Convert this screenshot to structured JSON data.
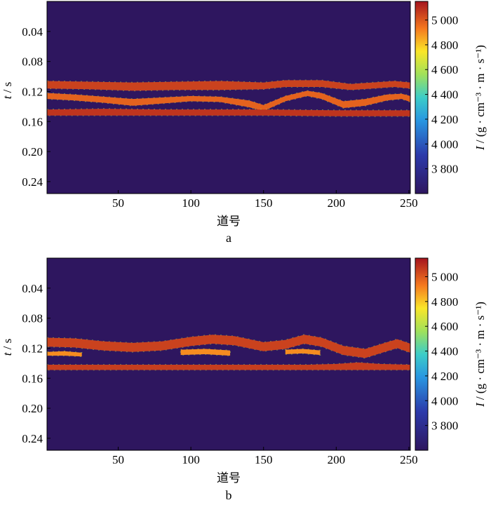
{
  "chart_data": [
    {
      "type": "heatmap",
      "panel_label": "a",
      "xlabel": "道号",
      "ylabel_italic": "t",
      "ylabel_unit": " / s",
      "xlim": [
        1,
        251
      ],
      "ylim": [
        0.0,
        0.256
      ],
      "x_ticks": [
        50,
        100,
        150,
        200,
        250
      ],
      "x_tick_labels": [
        "50",
        "100",
        "150",
        "200",
        "250"
      ],
      "y_ticks": [
        0.04,
        0.08,
        0.12,
        0.16,
        0.2,
        0.24
      ],
      "y_tick_labels": [
        "0.04",
        "0.08",
        "0.12",
        "0.16",
        "0.20",
        "0.24"
      ],
      "background_value": 3600,
      "colorbar": {
        "label_italic": "I",
        "label_rest": " / (g · cm⁻³ · m · s⁻¹)",
        "range": [
          3600,
          5150
        ],
        "ticks": [
          3800,
          4000,
          4200,
          4400,
          4600,
          4800,
          5000
        ],
        "tick_labels": [
          "3 800",
          "4 000",
          "4 200",
          "4 400",
          "4 600",
          "4 800",
          "5 000"
        ]
      },
      "layers": [
        {
          "x": [
            1,
            30,
            60,
            90,
            120,
            150,
            165,
            175,
            190,
            210,
            225,
            240,
            251
          ],
          "top": [
            0.106,
            0.107,
            0.108,
            0.107,
            0.106,
            0.108,
            0.105,
            0.105,
            0.105,
            0.11,
            0.108,
            0.106,
            0.108
          ],
          "bottom": [
            0.116,
            0.117,
            0.119,
            0.118,
            0.118,
            0.117,
            0.114,
            0.114,
            0.114,
            0.118,
            0.116,
            0.114,
            0.116
          ],
          "value": 5050
        },
        {
          "x": [
            1,
            20,
            40,
            60,
            80,
            100,
            120,
            140,
            150,
            165,
            180,
            190,
            205,
            220,
            235,
            245,
            251
          ],
          "top": [
            0.122,
            0.124,
            0.127,
            0.13,
            0.128,
            0.126,
            0.127,
            0.132,
            0.138,
            0.126,
            0.119,
            0.122,
            0.133,
            0.13,
            0.124,
            0.123,
            0.126
          ],
          "bottom": [
            0.13,
            0.132,
            0.135,
            0.139,
            0.136,
            0.133,
            0.134,
            0.141,
            0.146,
            0.133,
            0.126,
            0.13,
            0.142,
            0.139,
            0.132,
            0.13,
            0.134
          ],
          "value": 4980
        },
        {
          "x": [
            1,
            40,
            80,
            120,
            150,
            200,
            251
          ],
          "top": [
            0.144,
            0.143,
            0.144,
            0.144,
            0.144,
            0.145,
            0.145
          ],
          "bottom": [
            0.152,
            0.152,
            0.152,
            0.152,
            0.152,
            0.153,
            0.153
          ],
          "value": 5080
        }
      ]
    },
    {
      "type": "heatmap",
      "panel_label": "b",
      "xlabel": "道号",
      "ylabel_italic": "t",
      "ylabel_unit": " / s",
      "xlim": [
        1,
        251
      ],
      "ylim": [
        0.0,
        0.256
      ],
      "x_ticks": [
        50,
        100,
        150,
        200,
        250
      ],
      "x_tick_labels": [
        "50",
        "100",
        "150",
        "200",
        "250"
      ],
      "y_ticks": [
        0.04,
        0.08,
        0.12,
        0.16,
        0.2,
        0.24
      ],
      "y_tick_labels": [
        "0.04",
        "0.08",
        "0.12",
        "0.16",
        "0.20",
        "0.24"
      ],
      "background_value": 3600,
      "colorbar": {
        "label_italic": "I",
        "label_rest": " / (g · cm⁻³ · m · s⁻¹)",
        "range": [
          3600,
          5150
        ],
        "ticks": [
          3800,
          4000,
          4200,
          4400,
          4600,
          4800,
          5000
        ],
        "tick_labels": [
          "3 800",
          "4 000",
          "4 200",
          "4 400",
          "4 600",
          "4 800",
          "5 000"
        ]
      },
      "layers": [
        {
          "x": [
            1,
            20,
            40,
            60,
            80,
            100,
            115,
            130,
            150,
            165,
            178,
            190,
            205,
            220,
            235,
            242,
            251
          ],
          "top": [
            0.106,
            0.107,
            0.111,
            0.113,
            0.111,
            0.105,
            0.102,
            0.104,
            0.112,
            0.109,
            0.102,
            0.106,
            0.117,
            0.121,
            0.112,
            0.108,
            0.114
          ],
          "bottom": [
            0.118,
            0.119,
            0.123,
            0.125,
            0.123,
            0.117,
            0.114,
            0.116,
            0.124,
            0.121,
            0.114,
            0.118,
            0.129,
            0.133,
            0.124,
            0.12,
            0.126
          ],
          "value": 5050
        },
        {
          "x": [
            1,
            13,
            25
          ],
          "top": [
            0.125,
            0.124,
            0.126
          ],
          "bottom": [
            0.13,
            0.13,
            0.131
          ],
          "value": 4900
        },
        {
          "x": [
            93,
            110,
            127
          ],
          "top": [
            0.122,
            0.121,
            0.123
          ],
          "bottom": [
            0.129,
            0.128,
            0.13
          ],
          "value": 4900
        },
        {
          "x": [
            165,
            177,
            189
          ],
          "top": [
            0.122,
            0.121,
            0.123
          ],
          "bottom": [
            0.128,
            0.127,
            0.129
          ],
          "value": 4900
        },
        {
          "x": [
            1,
            60,
            120,
            180,
            200,
            215,
            230,
            251
          ],
          "top": [
            0.142,
            0.142,
            0.142,
            0.142,
            0.141,
            0.139,
            0.141,
            0.142
          ],
          "bottom": [
            0.149,
            0.149,
            0.149,
            0.149,
            0.149,
            0.149,
            0.149,
            0.149
          ],
          "value": 5060
        }
      ]
    }
  ]
}
